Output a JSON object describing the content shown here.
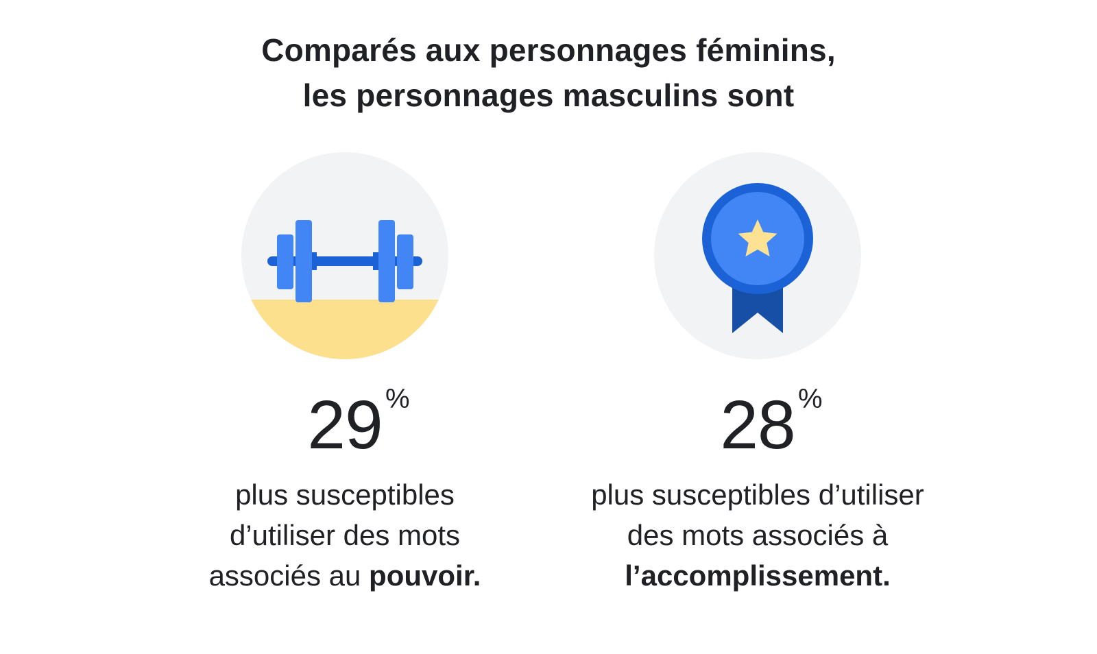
{
  "title": {
    "line1": "Comparés aux personnages féminins,",
    "line2": "les personnages masculins sont"
  },
  "colors": {
    "circle_bg": "#f1f3f4",
    "floor": "#fce08e",
    "blue_light": "#4285f4",
    "blue_dark": "#1a62d6",
    "ribbon": "#174ea6",
    "star": "#fde293",
    "text": "#202124"
  },
  "stats": [
    {
      "icon": "dumbbell-icon",
      "value": "29",
      "unit": "%",
      "text_line1": "plus susceptibles",
      "text_line2": "d’utiliser des mots",
      "text_line3_prefix": "associés au ",
      "text_line3_bold": "pouvoir."
    },
    {
      "icon": "award-medal-icon",
      "value": "28",
      "unit": "%",
      "text_line1": "plus susceptibles d’utiliser",
      "text_line2": "des mots associés à",
      "text_line3_prefix": "",
      "text_line3_bold": "l’accomplissement."
    }
  ]
}
